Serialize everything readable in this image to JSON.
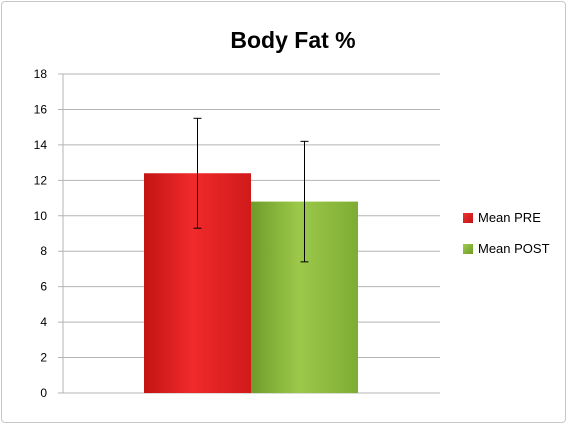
{
  "chart_data": {
    "type": "bar",
    "title": "Body Fat %",
    "xlabel": "",
    "ylabel": "",
    "ylim": [
      0,
      18
    ],
    "y_ticks": [
      0,
      2,
      4,
      6,
      8,
      10,
      12,
      14,
      16,
      18
    ],
    "grid": true,
    "legend_position": "right",
    "series": [
      {
        "name": "Mean PRE",
        "value": 12.4,
        "error": 3.1,
        "color": "#e82020"
      },
      {
        "name": "Mean POST",
        "value": 10.8,
        "error": 3.4,
        "color": "#8cbd3c"
      }
    ]
  }
}
